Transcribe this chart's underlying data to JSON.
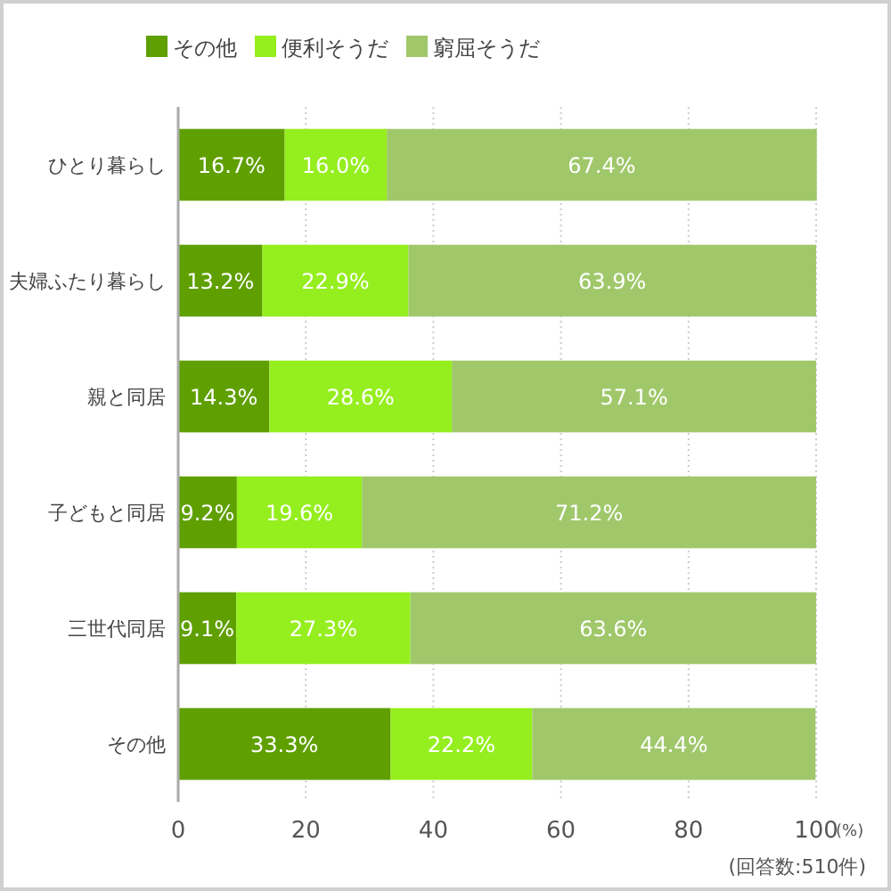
{
  "chart_data": {
    "type": "bar",
    "orientation": "horizontal",
    "stacked": true,
    "categories": [
      "ひとり暮らし",
      "夫婦ふたり暮らし",
      "親と同居",
      "子どもと同居",
      "三世代同居",
      "その他"
    ],
    "series": [
      {
        "name": "その他",
        "color": "#5fa000",
        "values": [
          16.7,
          13.2,
          14.3,
          9.2,
          9.1,
          33.3
        ],
        "value_labels": [
          "16.7%",
          "13.2%",
          "14.3%",
          "9.2%",
          "9.1%",
          "33.3%"
        ]
      },
      {
        "name": "便利そうだ",
        "color": "#95ee1e",
        "values": [
          16.0,
          22.9,
          28.6,
          19.6,
          27.3,
          22.2
        ],
        "value_labels": [
          "16.0%",
          "22.9%",
          "28.6%",
          "19.6%",
          "27.3%",
          "22.2%"
        ]
      },
      {
        "name": "窮屈そうだ",
        "color": "#a0c86b",
        "values": [
          67.4,
          63.9,
          57.1,
          71.2,
          63.6,
          44.4
        ],
        "value_labels": [
          "67.4%",
          "63.9%",
          "57.1%",
          "71.2%",
          "63.6%",
          "44.4%"
        ]
      }
    ],
    "xlim": [
      0,
      100
    ],
    "xticks": [
      0,
      20,
      40,
      60,
      80,
      100
    ],
    "xlabel": "(%)",
    "grid": "x",
    "legend": "top",
    "annotations": [
      "(回答数:510件)"
    ]
  }
}
